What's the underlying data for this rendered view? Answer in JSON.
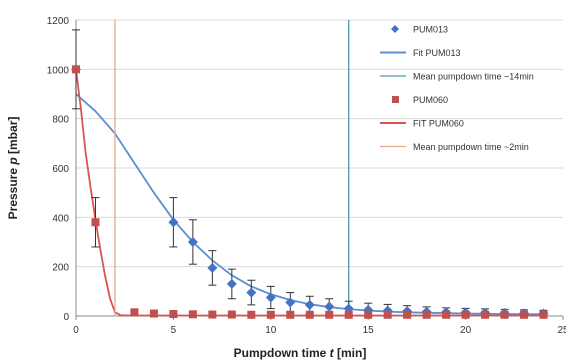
{
  "chart_data": {
    "type": "scatter",
    "title": "",
    "xlabel_prefix": "Pumpdown time ",
    "xlabel_var": "t",
    "xlabel_unit": " [min]",
    "ylabel_prefix": "Pressure ",
    "ylabel_var": "p",
    "ylabel_unit": " [mbar]",
    "xlim": [
      0,
      25
    ],
    "ylim": [
      0,
      1200
    ],
    "xticks": [
      0,
      5,
      10,
      15,
      20,
      25
    ],
    "xtick_labels": [
      "0",
      "5",
      "10",
      "15",
      "20",
      "25"
    ],
    "yticks": [
      0,
      200,
      400,
      600,
      800,
      1000,
      1200
    ],
    "ytick_labels": [
      "0",
      "200",
      "400",
      "600",
      "800",
      "1000",
      "1200"
    ],
    "grid": "horizontal",
    "legend_position": "right",
    "series": [
      {
        "name": "PUM013",
        "kind": "points",
        "marker": "diamond",
        "color": "#4472c4",
        "points": [
          {
            "x": 0,
            "y": 1000,
            "err": 0
          },
          {
            "x": 5,
            "y": 380,
            "err": 100
          },
          {
            "x": 6,
            "y": 300,
            "err": 90
          },
          {
            "x": 7,
            "y": 195,
            "err": 70
          },
          {
            "x": 8,
            "y": 130,
            "err": 60
          },
          {
            "x": 9,
            "y": 95,
            "err": 50
          },
          {
            "x": 10,
            "y": 75,
            "err": 45
          },
          {
            "x": 11,
            "y": 55,
            "err": 40
          },
          {
            "x": 12,
            "y": 45,
            "err": 35
          },
          {
            "x": 13,
            "y": 38,
            "err": 32
          },
          {
            "x": 14,
            "y": 30,
            "err": 30
          },
          {
            "x": 15,
            "y": 25,
            "err": 27
          },
          {
            "x": 16,
            "y": 22,
            "err": 25
          },
          {
            "x": 17,
            "y": 20,
            "err": 22
          },
          {
            "x": 18,
            "y": 17,
            "err": 20
          },
          {
            "x": 19,
            "y": 15,
            "err": 18
          },
          {
            "x": 20,
            "y": 14,
            "err": 17
          },
          {
            "x": 21,
            "y": 13,
            "err": 16
          },
          {
            "x": 22,
            "y": 12,
            "err": 15
          },
          {
            "x": 23,
            "y": 11,
            "err": 14
          },
          {
            "x": 24,
            "y": 10,
            "err": 13
          }
        ]
      },
      {
        "name": "Fit PUM013",
        "kind": "curve",
        "color": "#5b8fd1",
        "curve": [
          [
            0,
            900
          ],
          [
            1,
            830
          ],
          [
            2,
            740
          ],
          [
            3,
            620
          ],
          [
            4,
            500
          ],
          [
            5,
            390
          ],
          [
            6,
            300
          ],
          [
            7,
            225
          ],
          [
            8,
            165
          ],
          [
            9,
            120
          ],
          [
            10,
            88
          ],
          [
            11,
            65
          ],
          [
            12,
            48
          ],
          [
            13,
            36
          ],
          [
            14,
            28
          ],
          [
            15,
            22
          ],
          [
            16,
            18
          ],
          [
            17,
            15
          ],
          [
            18,
            13
          ],
          [
            20,
            10
          ],
          [
            22,
            8
          ],
          [
            24,
            7
          ]
        ]
      },
      {
        "name": "Mean pumpdown time ~14min",
        "kind": "vline",
        "color": "#4f97b8",
        "x": 14
      },
      {
        "name": "PUM060",
        "kind": "points",
        "marker": "square",
        "color": "#c0504d",
        "points": [
          {
            "x": 0,
            "y": 1000,
            "err": 160
          },
          {
            "x": 1,
            "y": 380,
            "err": 100
          },
          {
            "x": 3,
            "y": 15,
            "err": 0
          },
          {
            "x": 4,
            "y": 10,
            "err": 0
          },
          {
            "x": 5,
            "y": 8,
            "err": 0
          },
          {
            "x": 6,
            "y": 7,
            "err": 0
          },
          {
            "x": 7,
            "y": 6,
            "err": 0
          },
          {
            "x": 8,
            "y": 6,
            "err": 0
          },
          {
            "x": 9,
            "y": 5,
            "err": 0
          },
          {
            "x": 10,
            "y": 5,
            "err": 0
          },
          {
            "x": 11,
            "y": 5,
            "err": 0
          },
          {
            "x": 12,
            "y": 5,
            "err": 0
          },
          {
            "x": 13,
            "y": 5,
            "err": 0
          },
          {
            "x": 14,
            "y": 5,
            "err": 0
          },
          {
            "x": 15,
            "y": 5,
            "err": 0
          },
          {
            "x": 16,
            "y": 5,
            "err": 0
          },
          {
            "x": 17,
            "y": 5,
            "err": 0
          },
          {
            "x": 18,
            "y": 5,
            "err": 0
          },
          {
            "x": 19,
            "y": 5,
            "err": 0
          },
          {
            "x": 20,
            "y": 5,
            "err": 0
          },
          {
            "x": 21,
            "y": 5,
            "err": 0
          },
          {
            "x": 22,
            "y": 5,
            "err": 0
          },
          {
            "x": 23,
            "y": 5,
            "err": 0
          },
          {
            "x": 24,
            "y": 5,
            "err": 0
          }
        ]
      },
      {
        "name": "FIT PUM060",
        "kind": "curve",
        "color": "#d9534f",
        "curve": [
          [
            0,
            1000
          ],
          [
            0.25,
            840
          ],
          [
            0.5,
            660
          ],
          [
            0.75,
            520
          ],
          [
            1,
            390
          ],
          [
            1.25,
            270
          ],
          [
            1.5,
            160
          ],
          [
            1.75,
            70
          ],
          [
            2,
            15
          ],
          [
            2.3,
            3
          ],
          [
            3,
            2
          ],
          [
            24,
            2
          ]
        ]
      },
      {
        "name": "Mean pumpdown time ~2min",
        "kind": "vline",
        "color": "#e8a98a",
        "x": 2
      }
    ]
  }
}
